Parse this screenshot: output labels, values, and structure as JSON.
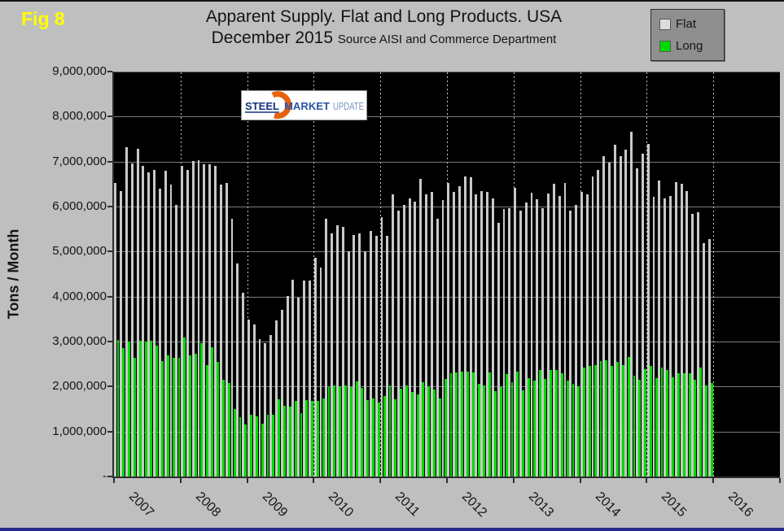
{
  "fig_label": "Fig 8",
  "title": {
    "line1": "Apparent Supply. Flat and Long Products. USA",
    "line2": "December 2015",
    "source": "Source AISI and Commerce Department"
  },
  "legend": {
    "items": [
      {
        "label": "Flat",
        "color": "#dcdcdc"
      },
      {
        "label": "Long",
        "color": "#00d900"
      }
    ]
  },
  "logo": {
    "word1": "STEEL",
    "word2": "MARKET",
    "word3": "UPDATE",
    "swoosh_color": "#e8620c"
  },
  "y_axis": {
    "title": "Tons / Month",
    "tick_labels": [
      "9,000,000",
      "8,000,000",
      "7,000,000",
      "6,000,000",
      "5,000,000",
      "4,000,000",
      "3,000,000",
      "2,000,000",
      "1,000,000",
      "-"
    ]
  },
  "x_axis": {
    "tick_labels": [
      "2007",
      "2008",
      "2009",
      "2010",
      "2011",
      "2012",
      "2013",
      "2014",
      "2015",
      "2016"
    ]
  },
  "chart_data": {
    "type": "bar",
    "title": "Apparent Supply. Flat and Long Products. USA — December 2015",
    "subtitle": "Source AISI and Commerce Department",
    "ylabel": "Tons / Month",
    "ylim": [
      0,
      9000000
    ],
    "y_tick_step": 1000000,
    "x_unit": "month",
    "x_range": "Jan 2007 - Dec 2015 (monthly, 108 points; 2016 span empty)",
    "years": [
      "2007",
      "2008",
      "2009",
      "2010",
      "2011",
      "2012",
      "2013",
      "2014",
      "2015"
    ],
    "grid": true,
    "legend_position": "top-right",
    "plot_bg": "#000000",
    "series": [
      {
        "name": "Flat",
        "color": "#c9c9c9",
        "values": [
          6540000,
          6370000,
          7330000,
          6970000,
          7310000,
          6920000,
          6780000,
          6830000,
          6410000,
          6810000,
          6500000,
          6060000,
          6930000,
          6830000,
          7040000,
          7050000,
          6960000,
          6950000,
          6930000,
          6510000,
          6550000,
          5750000,
          4750000,
          4100000,
          3500000,
          3400000,
          3070000,
          2980000,
          3160000,
          3490000,
          3730000,
          4030000,
          4400000,
          4000000,
          4370000,
          4370000,
          4880000,
          4670000,
          5750000,
          5420000,
          5600000,
          5570000,
          5030000,
          5390000,
          5420000,
          5030000,
          5480000,
          5370000,
          5780000,
          5360000,
          6290000,
          5930000,
          6050000,
          6200000,
          6120000,
          6630000,
          6290000,
          6340000,
          5750000,
          6160000,
          6550000,
          6350000,
          6470000,
          6690000,
          6670000,
          6290000,
          6370000,
          6350000,
          6200000,
          5660000,
          5960000,
          5990000,
          6440000,
          5930000,
          6110000,
          6320000,
          6190000,
          5990000,
          6310000,
          6530000,
          6250000,
          6550000,
          5930000,
          6050000,
          6350000,
          6290000,
          6690000,
          6830000,
          7140000,
          6990000,
          7390000,
          7140000,
          7290000,
          7680000,
          6870000,
          7200000,
          7410000,
          6230000,
          6600000,
          6200000,
          6250000,
          6570000,
          6530000,
          6370000,
          5860000,
          5900000,
          5210000,
          5300000
        ]
      },
      {
        "name": "Long",
        "color": "#00d900",
        "values": [
          3050000,
          2870000,
          3010000,
          2650000,
          3030000,
          3020000,
          3040000,
          2920000,
          2590000,
          2720000,
          2660000,
          2650000,
          3110000,
          2710000,
          2740000,
          2980000,
          2500000,
          2890000,
          2560000,
          2170000,
          2090000,
          1510000,
          1330000,
          1170000,
          1390000,
          1360000,
          1200000,
          1400000,
          1390000,
          1730000,
          1600000,
          1570000,
          1700000,
          1420000,
          1720000,
          1700000,
          1700000,
          1750000,
          2010000,
          2050000,
          2020000,
          2050000,
          2010000,
          2140000,
          1990000,
          1720000,
          1750000,
          1660000,
          1810000,
          2050000,
          1730000,
          1970000,
          2050000,
          1900000,
          1850000,
          2120000,
          2020000,
          1950000,
          1760000,
          2190000,
          2320000,
          2330000,
          2350000,
          2350000,
          2330000,
          2080000,
          2050000,
          2330000,
          1910000,
          2010000,
          2300000,
          2110000,
          2350000,
          1930000,
          2200000,
          2150000,
          2380000,
          2190000,
          2380000,
          2390000,
          2320000,
          2150000,
          2080000,
          2030000,
          2440000,
          2470000,
          2490000,
          2590000,
          2610000,
          2470000,
          2560000,
          2490000,
          2680000,
          2260000,
          2170000,
          2410000,
          2470000,
          2200000,
          2440000,
          2380000,
          2230000,
          2320000,
          2320000,
          2320000,
          2170000,
          2440000,
          2050000,
          2090000
        ]
      }
    ]
  }
}
